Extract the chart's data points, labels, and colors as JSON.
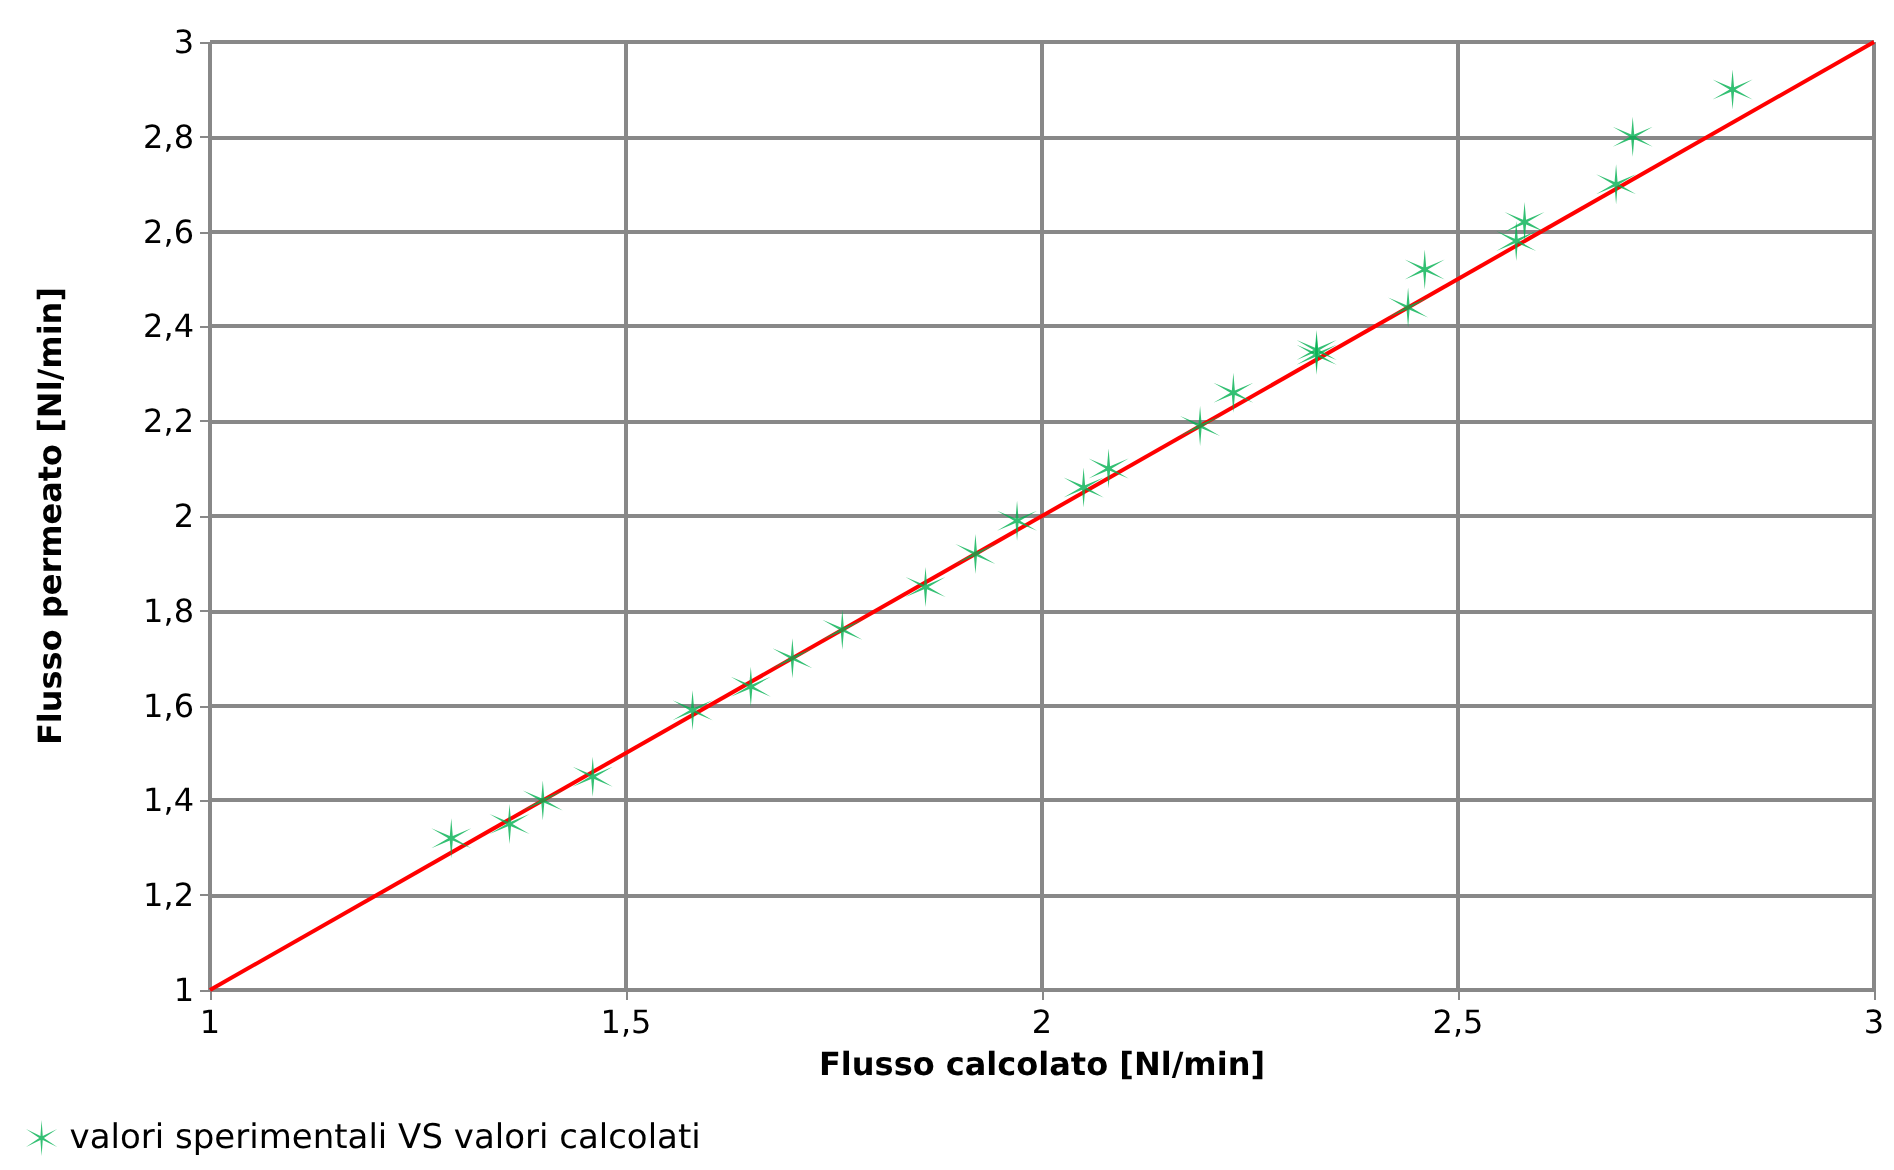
{
  "chart_data": {
    "type": "scatter",
    "xlabel": "Flusso calcolato [Nl/min]",
    "ylabel": "Flusso permeato [Nl/min]",
    "xlim": [
      1,
      3
    ],
    "xticks": [
      1,
      {
        "value": 1.5,
        "label": "1,5"
      },
      2,
      {
        "value": 2.5,
        "label": "2,5"
      },
      3
    ],
    "ylim": [
      1,
      3
    ],
    "yticks": [
      1,
      {
        "value": 1.2,
        "label": "1,2"
      },
      {
        "value": 1.4,
        "label": "1,4"
      },
      {
        "value": 1.6,
        "label": "1,6"
      },
      {
        "value": 1.8,
        "label": "1,8"
      },
      2,
      {
        "value": 2.2,
        "label": "2,2"
      },
      {
        "value": 2.4,
        "label": "2,4"
      },
      {
        "value": 2.6,
        "label": "2,6"
      },
      {
        "value": 2.8,
        "label": "2,8"
      },
      3
    ],
    "grid": true,
    "legend": "bottom left",
    "marker": "cross",
    "series": [
      {
        "name": "valori sperimentali VS valori calcolati",
        "color": "#00b050",
        "x": [
          1.29,
          1.36,
          1.4,
          1.46,
          1.58,
          1.65,
          1.7,
          1.76,
          1.86,
          1.92,
          1.97,
          2.05,
          2.08,
          2.19,
          2.23,
          2.33,
          2.33,
          2.44,
          2.46,
          2.57,
          2.58,
          2.69,
          2.71,
          2.83
        ],
        "values": [
          1.32,
          1.35,
          1.4,
          1.45,
          1.59,
          1.64,
          1.7,
          1.76,
          1.85,
          1.92,
          1.99,
          2.06,
          2.1,
          2.19,
          2.26,
          2.35,
          2.34,
          2.44,
          2.52,
          2.58,
          2.62,
          2.7,
          2.8,
          2.9
        ]
      },
      {
        "type": "line",
        "color": "#ff0000",
        "marker": "none",
        "x": [
          1,
          3
        ],
        "values": [
          1,
          3
        ]
      }
    ]
  }
}
